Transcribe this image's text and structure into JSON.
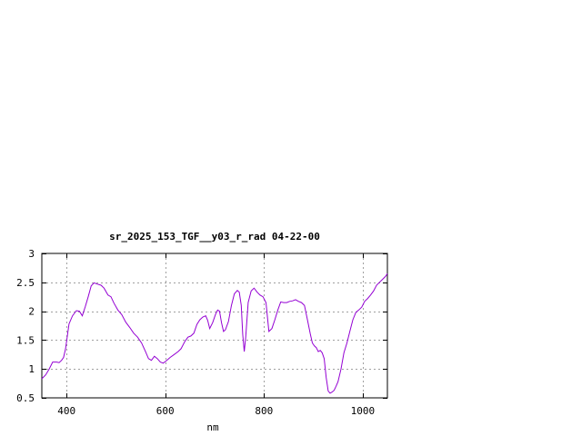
{
  "chart_data": {
    "type": "line",
    "title": "sr_2025_153_TGF__y03_r_rad 04-22-00",
    "xlabel": "nm",
    "ylabel": "",
    "xlim": [
      350,
      1050
    ],
    "ylim": [
      0.5,
      3
    ],
    "grid": true,
    "xticks": [
      400,
      600,
      800,
      1000
    ],
    "xtick_labels": [
      "400",
      "600",
      "800",
      "1000"
    ],
    "yticks": [
      0.5,
      1,
      1.5,
      2,
      2.5,
      3
    ],
    "ytick_labels": [
      "0.5",
      "1",
      "1.5",
      "2",
      "2.5",
      "3"
    ],
    "series_color": "#9400d3",
    "series": [
      {
        "x": [
          350,
          358,
          365,
          372,
          380,
          385,
          390,
          394,
          398,
          405,
          412,
          420,
          426,
          432,
          438,
          444,
          450,
          456,
          462,
          470,
          476,
          484,
          490,
          496,
          504,
          512,
          520,
          528,
          536,
          544,
          552,
          560,
          566,
          572,
          578,
          584,
          590,
          596,
          602,
          610,
          618,
          626,
          632,
          640,
          646,
          652,
          658,
          664,
          670,
          676,
          682,
          686,
          690,
          696,
          702,
          706,
          710,
          714,
          718,
          722,
          728,
          734,
          740,
          746,
          750,
          754,
          757,
          760,
          763,
          768,
          774,
          780,
          786,
          792,
          798,
          804,
          810,
          816,
          822,
          828,
          834,
          840,
          846,
          852,
          858,
          864,
          870,
          876,
          882,
          888,
          894,
          898,
          902,
          906,
          910,
          914,
          918,
          922,
          926,
          930,
          934,
          938,
          942,
          946,
          950,
          956,
          962,
          968,
          974,
          980,
          986,
          992,
          998,
          1004,
          1010,
          1016,
          1022,
          1028,
          1034,
          1040,
          1046,
          1050
        ],
        "y": [
          0.83,
          0.9,
          1.0,
          1.12,
          1.12,
          1.11,
          1.15,
          1.2,
          1.35,
          1.78,
          1.92,
          2.01,
          2.0,
          1.92,
          2.08,
          2.25,
          2.44,
          2.49,
          2.47,
          2.45,
          2.4,
          2.28,
          2.25,
          2.14,
          2.02,
          1.94,
          1.81,
          1.72,
          1.62,
          1.55,
          1.45,
          1.3,
          1.18,
          1.15,
          1.22,
          1.18,
          1.12,
          1.1,
          1.14,
          1.2,
          1.25,
          1.3,
          1.35,
          1.48,
          1.55,
          1.57,
          1.62,
          1.77,
          1.85,
          1.9,
          1.92,
          1.84,
          1.7,
          1.8,
          1.95,
          2.02,
          2.0,
          1.8,
          1.65,
          1.68,
          1.82,
          2.1,
          2.3,
          2.36,
          2.33,
          2.1,
          1.6,
          1.3,
          1.55,
          2.15,
          2.35,
          2.4,
          2.33,
          2.28,
          2.25,
          2.15,
          1.65,
          1.7,
          1.85,
          2.02,
          2.16,
          2.15,
          2.15,
          2.17,
          2.18,
          2.2,
          2.17,
          2.15,
          2.1,
          1.85,
          1.6,
          1.45,
          1.4,
          1.37,
          1.3,
          1.32,
          1.28,
          1.18,
          0.85,
          0.62,
          0.58,
          0.6,
          0.63,
          0.7,
          0.78,
          1.0,
          1.28,
          1.45,
          1.65,
          1.85,
          1.98,
          2.02,
          2.07,
          2.17,
          2.22,
          2.28,
          2.35,
          2.45,
          2.5,
          2.55,
          2.6,
          2.65
        ]
      }
    ]
  }
}
